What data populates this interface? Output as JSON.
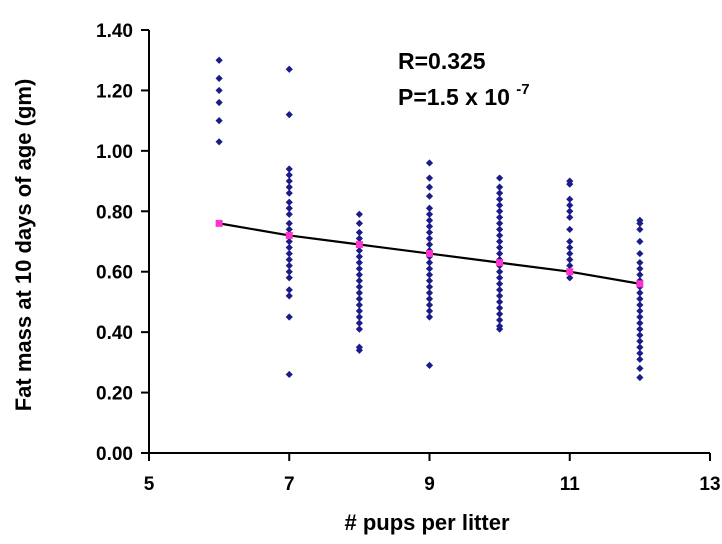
{
  "chart_data": {
    "type": "scatter",
    "xlabel": "# pups per litter",
    "ylabel": "Fat mass at 10 days of age (gm)",
    "xlim": [
      5,
      13
    ],
    "ylim": [
      0.0,
      1.4
    ],
    "x_ticks": [
      5,
      7,
      9,
      11,
      13
    ],
    "y_ticks": [
      0.0,
      0.2,
      0.4,
      0.6,
      0.8,
      1.0,
      1.2,
      1.4
    ],
    "y_tick_labels": [
      "0.00",
      "0.20",
      "0.40",
      "0.60",
      "0.80",
      "1.00",
      "1.20",
      "1.40"
    ],
    "grid": false,
    "annotations": {
      "r_text": "R=0.325",
      "p_text": "P=1.5 x 10",
      "p_exponent": "-7"
    },
    "colors": {
      "points": "#1b1b8a",
      "fit_line": "#000000",
      "fit_markers": "#ff33cc"
    },
    "series": [
      {
        "kind": "points",
        "points": [
          [
            6,
            1.3
          ],
          [
            6,
            1.24
          ],
          [
            6,
            1.2
          ],
          [
            6,
            1.16
          ],
          [
            6,
            1.1
          ],
          [
            6,
            1.03
          ],
          [
            7,
            1.27
          ],
          [
            7,
            1.12
          ],
          [
            7,
            0.94
          ],
          [
            7,
            0.92
          ],
          [
            7,
            0.9
          ],
          [
            7,
            0.88
          ],
          [
            7,
            0.86
          ],
          [
            7,
            0.83
          ],
          [
            7,
            0.81
          ],
          [
            7,
            0.79
          ],
          [
            7,
            0.76
          ],
          [
            7,
            0.74
          ],
          [
            7,
            0.72
          ],
          [
            7,
            0.7
          ],
          [
            7,
            0.68
          ],
          [
            7,
            0.66
          ],
          [
            7,
            0.64
          ],
          [
            7,
            0.62
          ],
          [
            7,
            0.6
          ],
          [
            7,
            0.58
          ],
          [
            7,
            0.54
          ],
          [
            7,
            0.52
          ],
          [
            7,
            0.45
          ],
          [
            7,
            0.26
          ],
          [
            8,
            0.79
          ],
          [
            8,
            0.76
          ],
          [
            8,
            0.73
          ],
          [
            8,
            0.71
          ],
          [
            8,
            0.69
          ],
          [
            8,
            0.67
          ],
          [
            8,
            0.65
          ],
          [
            8,
            0.63
          ],
          [
            8,
            0.61
          ],
          [
            8,
            0.59
          ],
          [
            8,
            0.57
          ],
          [
            8,
            0.55
          ],
          [
            8,
            0.53
          ],
          [
            8,
            0.51
          ],
          [
            8,
            0.49
          ],
          [
            8,
            0.47
          ],
          [
            8,
            0.45
          ],
          [
            8,
            0.43
          ],
          [
            8,
            0.41
          ],
          [
            8,
            0.35
          ],
          [
            8,
            0.34
          ],
          [
            9,
            0.96
          ],
          [
            9,
            0.91
          ],
          [
            9,
            0.88
          ],
          [
            9,
            0.85
          ],
          [
            9,
            0.81
          ],
          [
            9,
            0.79
          ],
          [
            9,
            0.77
          ],
          [
            9,
            0.75
          ],
          [
            9,
            0.73
          ],
          [
            9,
            0.71
          ],
          [
            9,
            0.69
          ],
          [
            9,
            0.67
          ],
          [
            9,
            0.65
          ],
          [
            9,
            0.63
          ],
          [
            9,
            0.61
          ],
          [
            9,
            0.59
          ],
          [
            9,
            0.57
          ],
          [
            9,
            0.55
          ],
          [
            9,
            0.53
          ],
          [
            9,
            0.51
          ],
          [
            9,
            0.49
          ],
          [
            9,
            0.47
          ],
          [
            9,
            0.45
          ],
          [
            9,
            0.29
          ],
          [
            10,
            0.91
          ],
          [
            10,
            0.88
          ],
          [
            10,
            0.86
          ],
          [
            10,
            0.84
          ],
          [
            10,
            0.82
          ],
          [
            10,
            0.8
          ],
          [
            10,
            0.78
          ],
          [
            10,
            0.76
          ],
          [
            10,
            0.74
          ],
          [
            10,
            0.72
          ],
          [
            10,
            0.7
          ],
          [
            10,
            0.68
          ],
          [
            10,
            0.66
          ],
          [
            10,
            0.64
          ],
          [
            10,
            0.62
          ],
          [
            10,
            0.6
          ],
          [
            10,
            0.58
          ],
          [
            10,
            0.56
          ],
          [
            10,
            0.54
          ],
          [
            10,
            0.52
          ],
          [
            10,
            0.5
          ],
          [
            10,
            0.48
          ],
          [
            10,
            0.46
          ],
          [
            10,
            0.44
          ],
          [
            10,
            0.42
          ],
          [
            10,
            0.41
          ],
          [
            11,
            0.9
          ],
          [
            11,
            0.89
          ],
          [
            11,
            0.84
          ],
          [
            11,
            0.82
          ],
          [
            11,
            0.8
          ],
          [
            11,
            0.78
          ],
          [
            11,
            0.74
          ],
          [
            11,
            0.7
          ],
          [
            11,
            0.68
          ],
          [
            11,
            0.66
          ],
          [
            11,
            0.64
          ],
          [
            11,
            0.62
          ],
          [
            11,
            0.6
          ],
          [
            11,
            0.58
          ],
          [
            12,
            0.77
          ],
          [
            12,
            0.76
          ],
          [
            12,
            0.74
          ],
          [
            12,
            0.7
          ],
          [
            12,
            0.66
          ],
          [
            12,
            0.63
          ],
          [
            12,
            0.61
          ],
          [
            12,
            0.59
          ],
          [
            12,
            0.57
          ],
          [
            12,
            0.55
          ],
          [
            12,
            0.53
          ],
          [
            12,
            0.51
          ],
          [
            12,
            0.49
          ],
          [
            12,
            0.47
          ],
          [
            12,
            0.45
          ],
          [
            12,
            0.43
          ],
          [
            12,
            0.41
          ],
          [
            12,
            0.39
          ],
          [
            12,
            0.37
          ],
          [
            12,
            0.35
          ],
          [
            12,
            0.33
          ],
          [
            12,
            0.31
          ],
          [
            12,
            0.28
          ],
          [
            12,
            0.25
          ]
        ]
      },
      {
        "kind": "fit",
        "points": [
          [
            6,
            0.76
          ],
          [
            7,
            0.72
          ],
          [
            8,
            0.69
          ],
          [
            9,
            0.66
          ],
          [
            10,
            0.63
          ],
          [
            11,
            0.6
          ],
          [
            12,
            0.56
          ]
        ]
      }
    ]
  }
}
